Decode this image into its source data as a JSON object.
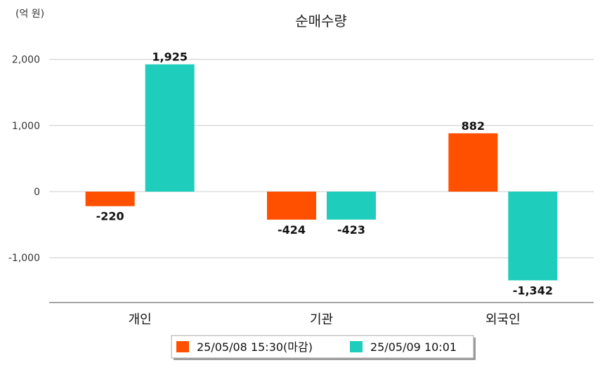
{
  "chart_data": {
    "type": "bar",
    "title": "순매수량",
    "unit_label": "(억 원)",
    "categories": [
      "개인",
      "기관",
      "외국인"
    ],
    "series": [
      {
        "name": "25/05/08 15:30(마감)",
        "color": "#ff5000",
        "values": [
          -220,
          -424,
          882
        ],
        "labels": [
          "-220",
          "-424",
          "882"
        ]
      },
      {
        "name": "25/05/09 10:01",
        "color": "#1ecdbb",
        "values": [
          1925,
          -423,
          -1342
        ],
        "labels": [
          "1,925",
          "-423",
          "-1,342"
        ]
      }
    ],
    "y_ticks": [
      2000,
      1000,
      0,
      -1000
    ],
    "y_tick_labels": [
      "2,000",
      "1,000",
      "0",
      "-1,000"
    ],
    "ylim": [
      -1650,
      2000
    ],
    "grid": true,
    "legend_position": "bottom"
  }
}
